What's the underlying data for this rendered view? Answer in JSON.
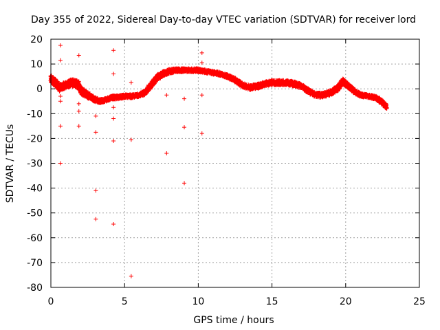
{
  "chart_data": {
    "type": "scatter",
    "title": "Day 355 of 2022, Sidereal Day-to-day VTEC variation (SDTVAR) for receiver lord",
    "xlabel": "GPS time / hours",
    "ylabel": "SDTVAR / TECUs",
    "xlim": [
      0,
      25
    ],
    "ylim": [
      -80,
      20
    ],
    "xticks": [
      0,
      5,
      10,
      15,
      20,
      25
    ],
    "yticks": [
      20,
      10,
      0,
      -10,
      -20,
      -30,
      -40,
      -50,
      -60,
      -70,
      -80
    ],
    "grid": true,
    "marker": "+",
    "color": "#ff0000",
    "bands": [
      {
        "x": [
          0.0,
          0.3,
          0.6,
          1.0,
          1.4,
          1.8,
          2.1,
          2.5,
          2.9,
          3.3,
          3.7,
          4.1,
          4.5,
          5.0,
          5.5,
          6.0,
          6.4,
          6.8,
          7.2,
          7.6,
          8.0,
          8.5,
          9.0,
          9.5,
          10.0,
          10.5,
          11.0,
          11.5,
          12.0,
          12.5,
          13.0,
          13.5,
          14.0,
          14.5,
          15.0,
          15.5,
          16.0,
          16.5,
          17.0,
          17.5,
          18.0,
          18.5,
          19.0,
          19.5,
          19.8,
          20.2,
          20.6,
          21.0,
          21.5,
          22.0,
          22.4,
          22.8
        ],
        "center": [
          4.0,
          2.5,
          0.5,
          1.5,
          2.5,
          2.0,
          -1.0,
          -2.5,
          -4.0,
          -5.0,
          -4.5,
          -3.5,
          -3.5,
          -3.0,
          -3.0,
          -2.5,
          -1.5,
          1.5,
          4.5,
          6.0,
          7.0,
          7.5,
          7.5,
          7.5,
          7.5,
          7.0,
          6.5,
          6.0,
          5.0,
          3.5,
          1.5,
          0.5,
          1.0,
          2.0,
          2.5,
          2.5,
          2.5,
          2.0,
          1.0,
          -1.0,
          -2.5,
          -2.5,
          -1.5,
          0.5,
          3.0,
          1.0,
          -1.0,
          -2.5,
          -3.0,
          -3.5,
          -5.0,
          -7.5
        ],
        "spread": [
          3.0,
          3.0,
          3.0,
          2.5,
          3.0,
          3.0,
          3.0,
          2.5,
          2.0,
          1.5,
          1.5,
          1.5,
          1.5,
          1.5,
          1.5,
          1.5,
          2.0,
          2.5,
          2.5,
          2.0,
          2.0,
          1.5,
          1.5,
          1.5,
          1.5,
          1.5,
          1.5,
          1.5,
          1.5,
          2.0,
          2.0,
          2.0,
          2.0,
          2.0,
          2.0,
          2.0,
          2.0,
          2.0,
          2.0,
          2.0,
          2.0,
          2.0,
          2.0,
          2.5,
          2.5,
          2.0,
          2.0,
          1.5,
          1.5,
          1.5,
          2.0,
          2.0
        ]
      }
    ],
    "outliers": {
      "x": [
        0.65,
        0.65,
        0.65,
        0.65,
        0.65,
        0.65,
        1.9,
        1.9,
        1.9,
        1.9,
        1.9,
        3.05,
        3.05,
        3.05,
        3.05,
        4.25,
        4.25,
        4.25,
        4.25,
        4.25,
        4.25,
        5.45,
        5.45,
        5.45,
        7.85,
        7.85,
        9.05,
        9.05,
        9.05,
        10.25,
        10.25,
        10.25,
        10.25
      ],
      "y": [
        17.5,
        11.5,
        -3,
        -5,
        -15,
        -30,
        13.5,
        -6,
        -9,
        -15,
        3,
        -11,
        -17.5,
        -41,
        -52.5,
        15.5,
        6,
        -7.5,
        -12,
        -21,
        -54.5,
        2.5,
        -20.5,
        -75.5,
        -2.5,
        -26,
        -4,
        -15.5,
        -38,
        14.5,
        10.5,
        -2.5,
        -18
      ]
    }
  }
}
